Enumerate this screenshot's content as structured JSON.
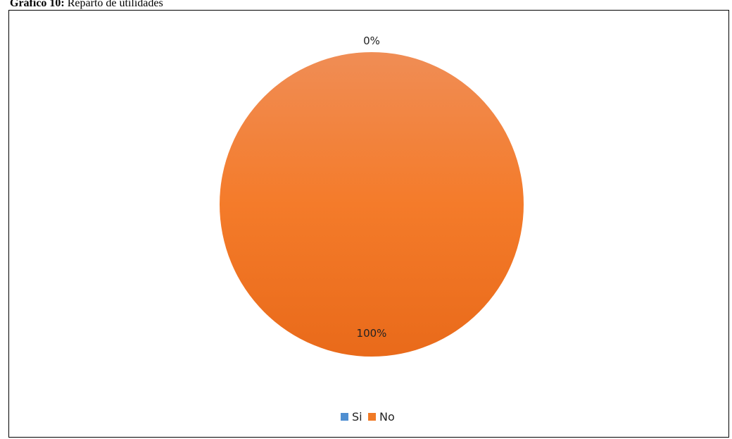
{
  "caption": {
    "label": "Gráfico 10:",
    "text": "Reparto de utilidades"
  },
  "chart_data": {
    "type": "pie",
    "categories": [
      "Si",
      "No"
    ],
    "values": [
      0,
      100
    ],
    "data_labels": [
      "0%",
      "100%"
    ],
    "colors": [
      "#4f8fd1",
      "#f07a26"
    ],
    "legend_placement": "bottom"
  }
}
